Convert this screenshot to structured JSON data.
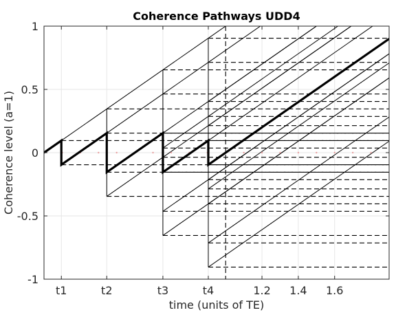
{
  "chart_data": {
    "type": "line",
    "title": "Coherence Pathways UDD4",
    "xlabel": "time (units of TE)",
    "ylabel": "Coherence level (a=1)",
    "xlim": [
      0,
      1.9
    ],
    "ylim": [
      -1,
      1
    ],
    "grid": true,
    "x_ticks": [
      {
        "value": 0.0955,
        "label": "t1"
      },
      {
        "value": 0.3455,
        "label": "t2"
      },
      {
        "value": 0.6545,
        "label": "t3"
      },
      {
        "value": 0.9045,
        "label": "t4"
      },
      {
        "value": 1.2,
        "label": "1.2"
      },
      {
        "value": 1.4,
        "label": "1.4"
      },
      {
        "value": 1.6,
        "label": "1.6"
      }
    ],
    "y_ticks": [
      {
        "value": -1,
        "label": "-1"
      },
      {
        "value": -0.5,
        "label": "-0.5"
      },
      {
        "value": 0,
        "label": "0"
      },
      {
        "value": 0.5,
        "label": "0.5"
      },
      {
        "value": 1,
        "label": "1"
      }
    ],
    "pulse_times": [
      0.0955,
      0.3455,
      0.6545,
      0.9045
    ],
    "echo_time": 1.0,
    "highlighted_pathway": {
      "x": [
        0,
        0.0955,
        0.0955,
        0.3455,
        0.3455,
        0.6545,
        0.6545,
        0.9045,
        0.9045,
        1.9
      ],
      "y": [
        0,
        0.0955,
        -0.0955,
        0.1545,
        -0.1545,
        0.1545,
        -0.1545,
        0.0955,
        -0.0955,
        0.9
      ]
    },
    "colors": {
      "highlight": "#000000",
      "pathway": "#000000",
      "echo_marker": "#e8a0a0",
      "grid": "#e6e6e6"
    }
  }
}
